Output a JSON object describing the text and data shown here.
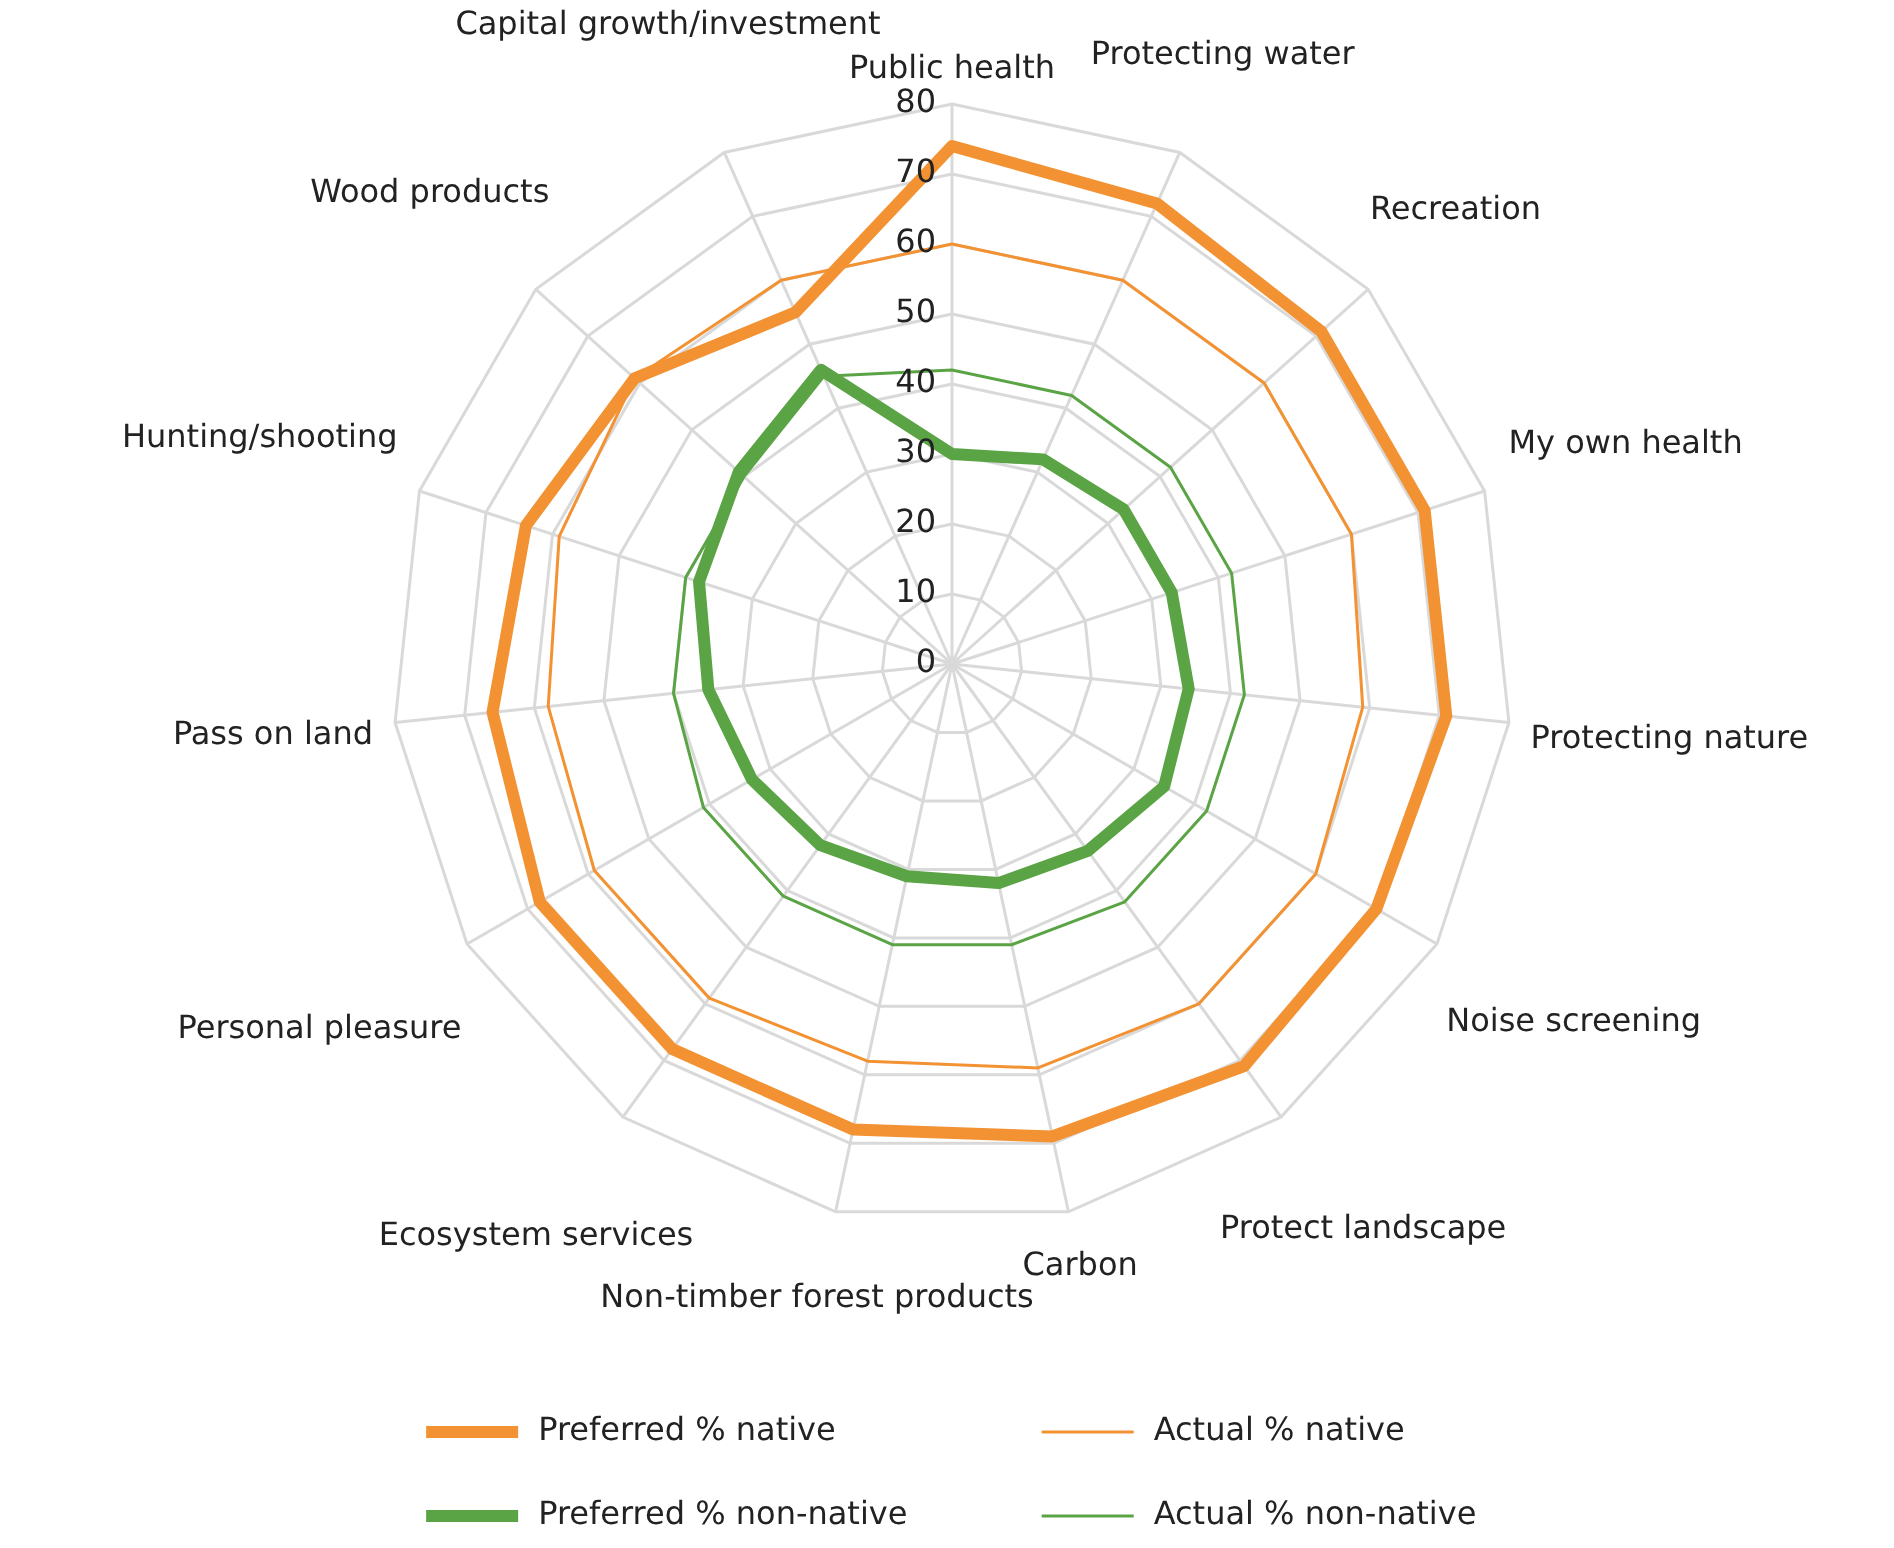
{
  "chart_data": {
    "type": "radar",
    "categories": [
      "Public health",
      "Protecting water",
      "Recreation",
      "My own health",
      "Protecting nature",
      "Noise screening",
      "Protect landscape",
      "Carbon",
      "Non-timber forest products",
      "Ecosystem services",
      "Personal pleasure",
      "Pass on land",
      "Hunting/shooting",
      "Wood products",
      "Capital growth/investment"
    ],
    "ylim": [
      0,
      80
    ],
    "yticks": [
      0,
      10,
      20,
      30,
      40,
      50,
      60,
      70,
      80
    ],
    "grid": true,
    "legend": "bottom",
    "marker": "none",
    "series": [
      {
        "name": "Preferred % native",
        "color": "#f39232",
        "values": [
          74,
          72,
          71,
          71,
          71,
          70,
          71,
          69,
          68,
          68,
          68,
          66,
          64,
          61,
          55
        ]
      },
      {
        "name": "Actual % native",
        "color": "#f39232",
        "values": [
          60,
          60,
          60,
          60,
          59,
          60,
          60,
          59,
          58,
          59,
          59,
          58,
          59,
          61,
          60
        ]
      },
      {
        "name": "Preferred % non-native",
        "color": "#5ba446",
        "values": [
          30,
          32,
          33,
          33,
          34,
          35,
          33,
          32,
          31,
          32,
          33,
          35,
          38,
          41,
          46
        ]
      },
      {
        "name": "Actual % non-native",
        "color": "#5ba446",
        "values": [
          42,
          42,
          42,
          42,
          42,
          42,
          42,
          41,
          41,
          41,
          41,
          40,
          40,
          40,
          45
        ]
      }
    ]
  }
}
